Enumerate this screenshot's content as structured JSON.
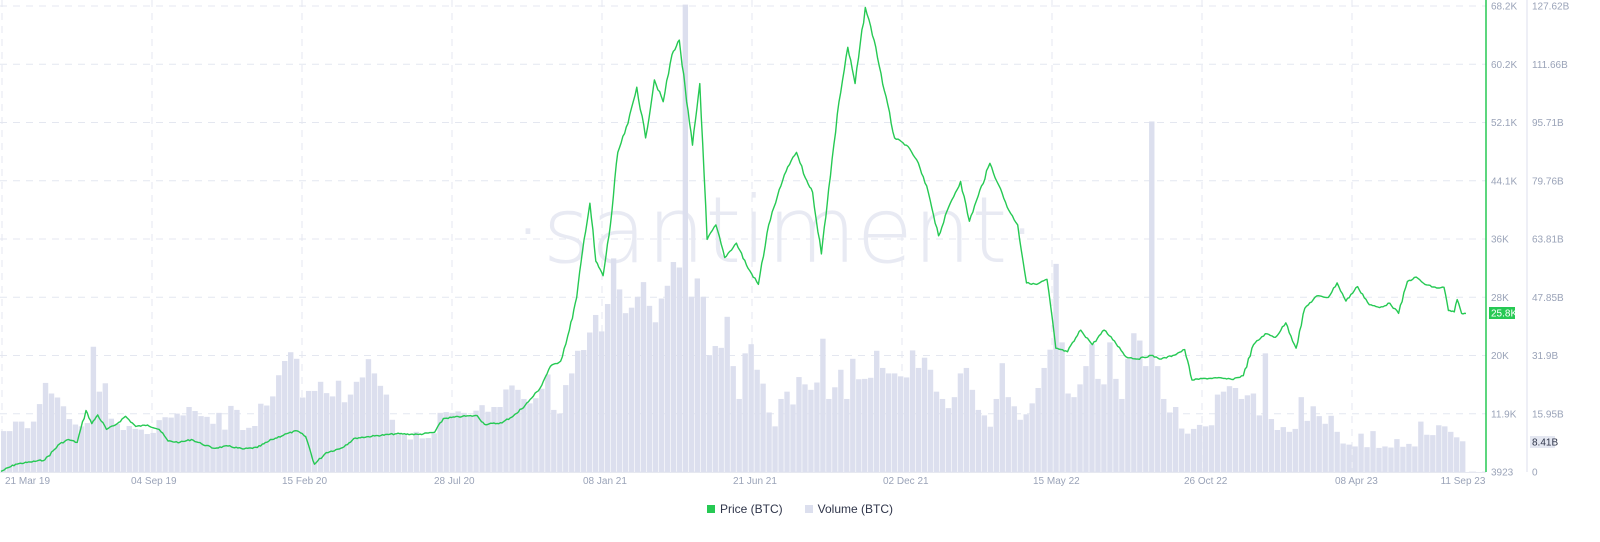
{
  "watermark": "·santiment·",
  "legend": [
    {
      "label": "Price (BTC)",
      "color": "#26c953"
    },
    {
      "label": "Volume (BTC)",
      "color": "#dcdfee"
    }
  ],
  "current_labels": {
    "price": "25.8K",
    "volume": "8.41B"
  },
  "colors": {
    "price_line": "#26c953",
    "volume_bar": "#dcdfee",
    "grid": "#e4e7f0",
    "price_axis": "#26c953",
    "volume_axis": "#dcdfee",
    "tick_text": "#9aa3b8",
    "price_badge_bg": "#26c953",
    "volume_badge_bg": "#e4e7f1"
  },
  "chart_data": {
    "type": "line+bar",
    "title": "",
    "legend_position": "bottom-center",
    "grid": true,
    "x_tick_labels": [
      "21 Mar 19",
      "04 Sep 19",
      "15 Feb 20",
      "28 Jul 20",
      "08 Jan 21",
      "21 Jun 21",
      "02 Dec 21",
      "15 May 22",
      "26 Oct 22",
      "08 Apr 23",
      "11 Sep 23"
    ],
    "x_range": [
      "21 Mar 19",
      "11 Sep 23"
    ],
    "y_price_ticks": [
      "3923",
      "11.9K",
      "20K",
      "28K",
      "36K",
      "44.1K",
      "52.1K",
      "60.2K",
      "68.2K"
    ],
    "y_price_range": [
      3923,
      68200
    ],
    "y_volume_ticks": [
      "0",
      "15.95B",
      "31.9B",
      "47.85B",
      "63.81B",
      "79.76B",
      "95.71B",
      "111.66B",
      "127.62B"
    ],
    "y_volume_range": [
      0,
      127620000000
    ],
    "series": [
      {
        "name": "Price (BTC)",
        "type": "line",
        "axis": "left-inner",
        "last_value": "25.8K",
        "points": [
          {
            "x": 0.0,
            "v": 4000
          },
          {
            "x": 0.01,
            "v": 5000
          },
          {
            "x": 0.02,
            "v": 5300
          },
          {
            "x": 0.03,
            "v": 5600
          },
          {
            "x": 0.04,
            "v": 7800
          },
          {
            "x": 0.046,
            "v": 8400
          },
          {
            "x": 0.052,
            "v": 8000
          },
          {
            "x": 0.058,
            "v": 12400
          },
          {
            "x": 0.062,
            "v": 10600
          },
          {
            "x": 0.066,
            "v": 11800
          },
          {
            "x": 0.072,
            "v": 9800
          },
          {
            "x": 0.078,
            "v": 10400
          },
          {
            "x": 0.085,
            "v": 11600
          },
          {
            "x": 0.092,
            "v": 10200
          },
          {
            "x": 0.1,
            "v": 10400
          },
          {
            "x": 0.108,
            "v": 9800
          },
          {
            "x": 0.114,
            "v": 8200
          },
          {
            "x": 0.122,
            "v": 8000
          },
          {
            "x": 0.13,
            "v": 8400
          },
          {
            "x": 0.137,
            "v": 7800
          },
          {
            "x": 0.145,
            "v": 7200
          },
          {
            "x": 0.155,
            "v": 7500
          },
          {
            "x": 0.165,
            "v": 7100
          },
          {
            "x": 0.175,
            "v": 7300
          },
          {
            "x": 0.185,
            "v": 8400
          },
          {
            "x": 0.195,
            "v": 9200
          },
          {
            "x": 0.202,
            "v": 9600
          },
          {
            "x": 0.208,
            "v": 8800
          },
          {
            "x": 0.214,
            "v": 5000
          },
          {
            "x": 0.222,
            "v": 6600
          },
          {
            "x": 0.232,
            "v": 7200
          },
          {
            "x": 0.242,
            "v": 8600
          },
          {
            "x": 0.255,
            "v": 8900
          },
          {
            "x": 0.27,
            "v": 9200
          },
          {
            "x": 0.285,
            "v": 9100
          },
          {
            "x": 0.296,
            "v": 9400
          },
          {
            "x": 0.302,
            "v": 11300
          },
          {
            "x": 0.315,
            "v": 11600
          },
          {
            "x": 0.325,
            "v": 11700
          },
          {
            "x": 0.33,
            "v": 10500
          },
          {
            "x": 0.342,
            "v": 10700
          },
          {
            "x": 0.352,
            "v": 12000
          },
          {
            "x": 0.36,
            "v": 13600
          },
          {
            "x": 0.368,
            "v": 15500
          },
          {
            "x": 0.375,
            "v": 18500
          },
          {
            "x": 0.382,
            "v": 19200
          },
          {
            "x": 0.388,
            "v": 23500
          },
          {
            "x": 0.393,
            "v": 28000
          },
          {
            "x": 0.398,
            "v": 36000
          },
          {
            "x": 0.402,
            "v": 41000
          },
          {
            "x": 0.406,
            "v": 33000
          },
          {
            "x": 0.411,
            "v": 31000
          },
          {
            "x": 0.416,
            "v": 38000
          },
          {
            "x": 0.421,
            "v": 48000
          },
          {
            "x": 0.428,
            "v": 52000
          },
          {
            "x": 0.434,
            "v": 57000
          },
          {
            "x": 0.44,
            "v": 50000
          },
          {
            "x": 0.446,
            "v": 58000
          },
          {
            "x": 0.452,
            "v": 55000
          },
          {
            "x": 0.458,
            "v": 61500
          },
          {
            "x": 0.463,
            "v": 63500
          },
          {
            "x": 0.468,
            "v": 55000
          },
          {
            "x": 0.472,
            "v": 49000
          },
          {
            "x": 0.477,
            "v": 57500
          },
          {
            "x": 0.482,
            "v": 36000
          },
          {
            "x": 0.488,
            "v": 38000
          },
          {
            "x": 0.494,
            "v": 33500
          },
          {
            "x": 0.502,
            "v": 35500
          },
          {
            "x": 0.51,
            "v": 32000
          },
          {
            "x": 0.517,
            "v": 29800
          },
          {
            "x": 0.524,
            "v": 38000
          },
          {
            "x": 0.53,
            "v": 42000
          },
          {
            "x": 0.537,
            "v": 46000
          },
          {
            "x": 0.543,
            "v": 48000
          },
          {
            "x": 0.549,
            "v": 44500
          },
          {
            "x": 0.554,
            "v": 42500
          },
          {
            "x": 0.56,
            "v": 34000
          },
          {
            "x": 0.565,
            "v": 43000
          },
          {
            "x": 0.572,
            "v": 55000
          },
          {
            "x": 0.578,
            "v": 62500
          },
          {
            "x": 0.583,
            "v": 57500
          },
          {
            "x": 0.59,
            "v": 68000
          },
          {
            "x": 0.596,
            "v": 63500
          },
          {
            "x": 0.603,
            "v": 56500
          },
          {
            "x": 0.61,
            "v": 50000
          },
          {
            "x": 0.618,
            "v": 49000
          },
          {
            "x": 0.625,
            "v": 47000
          },
          {
            "x": 0.633,
            "v": 42500
          },
          {
            "x": 0.64,
            "v": 36500
          },
          {
            "x": 0.648,
            "v": 41000
          },
          {
            "x": 0.655,
            "v": 44000
          },
          {
            "x": 0.661,
            "v": 38500
          },
          {
            "x": 0.667,
            "v": 42000
          },
          {
            "x": 0.675,
            "v": 46500
          },
          {
            "x": 0.681,
            "v": 43500
          },
          {
            "x": 0.688,
            "v": 40000
          },
          {
            "x": 0.694,
            "v": 38000
          },
          {
            "x": 0.7,
            "v": 30000
          },
          {
            "x": 0.707,
            "v": 29800
          },
          {
            "x": 0.714,
            "v": 30500
          },
          {
            "x": 0.72,
            "v": 21000
          },
          {
            "x": 0.728,
            "v": 20500
          },
          {
            "x": 0.737,
            "v": 23500
          },
          {
            "x": 0.745,
            "v": 21500
          },
          {
            "x": 0.753,
            "v": 23500
          },
          {
            "x": 0.76,
            "v": 22000
          },
          {
            "x": 0.768,
            "v": 19800
          },
          {
            "x": 0.776,
            "v": 19500
          },
          {
            "x": 0.785,
            "v": 20000
          },
          {
            "x": 0.792,
            "v": 19500
          },
          {
            "x": 0.8,
            "v": 20000
          },
          {
            "x": 0.808,
            "v": 20800
          },
          {
            "x": 0.813,
            "v": 16600
          },
          {
            "x": 0.82,
            "v": 16800
          },
          {
            "x": 0.83,
            "v": 16900
          },
          {
            "x": 0.84,
            "v": 16700
          },
          {
            "x": 0.848,
            "v": 17200
          },
          {
            "x": 0.855,
            "v": 21500
          },
          {
            "x": 0.863,
            "v": 23000
          },
          {
            "x": 0.87,
            "v": 22500
          },
          {
            "x": 0.877,
            "v": 24500
          },
          {
            "x": 0.884,
            "v": 21000
          },
          {
            "x": 0.89,
            "v": 26500
          },
          {
            "x": 0.898,
            "v": 28200
          },
          {
            "x": 0.906,
            "v": 28000
          },
          {
            "x": 0.912,
            "v": 30000
          },
          {
            "x": 0.918,
            "v": 27500
          },
          {
            "x": 0.926,
            "v": 29500
          },
          {
            "x": 0.934,
            "v": 27000
          },
          {
            "x": 0.941,
            "v": 26600
          },
          {
            "x": 0.948,
            "v": 27200
          },
          {
            "x": 0.954,
            "v": 25800
          },
          {
            "x": 0.96,
            "v": 30200
          },
          {
            "x": 0.966,
            "v": 30800
          },
          {
            "x": 0.972,
            "v": 29800
          },
          {
            "x": 0.98,
            "v": 29300
          },
          {
            "x": 0.985,
            "v": 29400
          },
          {
            "x": 0.988,
            "v": 26200
          },
          {
            "x": 0.992,
            "v": 26000
          },
          {
            "x": 0.994,
            "v": 27700
          },
          {
            "x": 0.997,
            "v": 25800
          },
          {
            "x": 1.0,
            "v": 25800
          }
        ]
      },
      {
        "name": "Volume (BTC)",
        "type": "bar",
        "axis": "right-outer",
        "last_value": "8.41B",
        "unit": "B",
        "values": [
          11.2,
          11.2,
          13.8,
          13.8,
          12.0,
          13.8,
          18.6,
          24.4,
          21.5,
          20.4,
          18.0,
          14.5,
          13.0,
          12.5,
          13.4,
          34.3,
          22.0,
          24.3,
          14.6,
          13.2,
          11.5,
          12.6,
          11.8,
          11.6,
          10.4,
          10.7,
          14.2,
          15.0,
          14.9,
          16.0,
          15.5,
          17.8,
          16.7,
          15.3,
          15.1,
          13.2,
          16.2,
          11.6,
          18.1,
          17.0,
          11.5,
          12.1,
          12.6,
          18.7,
          18.2,
          20.7,
          26.5,
          30.4,
          32.8,
          31.0,
          20.4,
          22.2,
          22.2,
          24.7,
          21.6,
          20.7,
          25.0,
          19.1,
          21.2,
          24.7,
          25.9,
          30.9,
          27.0,
          23.6,
          21.2,
          14.3,
          10.3,
          10.1,
          8.9,
          11.0,
          9.2,
          9.3,
          10.6,
          16.2,
          16.4,
          16.2,
          16.6,
          16.2,
          15.3,
          16.8,
          18.3,
          16.5,
          17.8,
          17.8,
          22.6,
          23.7,
          22.5,
          20.0,
          18.8,
          20.2,
          22.8,
          26.7,
          17.0,
          16.0,
          23.8,
          27.0,
          33.2,
          33.4,
          38.2,
          43.0,
          38.5,
          46.0,
          58.5,
          50.0,
          43.5,
          45.0,
          48.0,
          52.0,
          45.5,
          41.0,
          47.5,
          51.0,
          57.5,
          56.0,
          128.0,
          48.0,
          53.0,
          48.0,
          32.0,
          34.5,
          34.0,
          42.5,
          29.0,
          20.0,
          32.5,
          35.0,
          28.0,
          24.2,
          16.3,
          12.5,
          20.0,
          22.0,
          18.5,
          26.0,
          24.0,
          22.5,
          24.5,
          36.5,
          20.0,
          23.2,
          28.0,
          20.0,
          31.0,
          25.4,
          25.5,
          25.8,
          33.2,
          28.5,
          27.0,
          27.0,
          26.2,
          25.9,
          33.3,
          28.5,
          31.3,
          28.0,
          22.0,
          20.0,
          17.5,
          20.5,
          27.0,
          28.5,
          22.5,
          17.0,
          15.5,
          12.4,
          20.0,
          29.8,
          20.5,
          18.0,
          14.3,
          15.8,
          18.8,
          23.0,
          28.5,
          33.5,
          57.0,
          35.5,
          21.5,
          20.5,
          24.0,
          29.0,
          35.0,
          25.5,
          24.0,
          35.5,
          25.5,
          20.0,
          31.0,
          38.0,
          36.0,
          29.0,
          96.0,
          29.0,
          20.0,
          16.3,
          17.8,
          11.9,
          10.5,
          11.8,
          12.9,
          12.5,
          12.8,
          21.2,
          22.0,
          23.5,
          23.0,
          20.0,
          21.0,
          21.5,
          15.5,
          32.5,
          14.5,
          11.5,
          12.3,
          11.0,
          11.8,
          20.5,
          14.0,
          18.0,
          15.3,
          13.2,
          15.4,
          11.0,
          7.8,
          7.5,
          7.0,
          10.5,
          6.8,
          11.2,
          6.6,
          7.0,
          6.7,
          9.0,
          6.9,
          7.7,
          7.0,
          13.8,
          10.2,
          10.1,
          12.8,
          12.5,
          11.0,
          9.5,
          8.41
        ]
      }
    ]
  }
}
